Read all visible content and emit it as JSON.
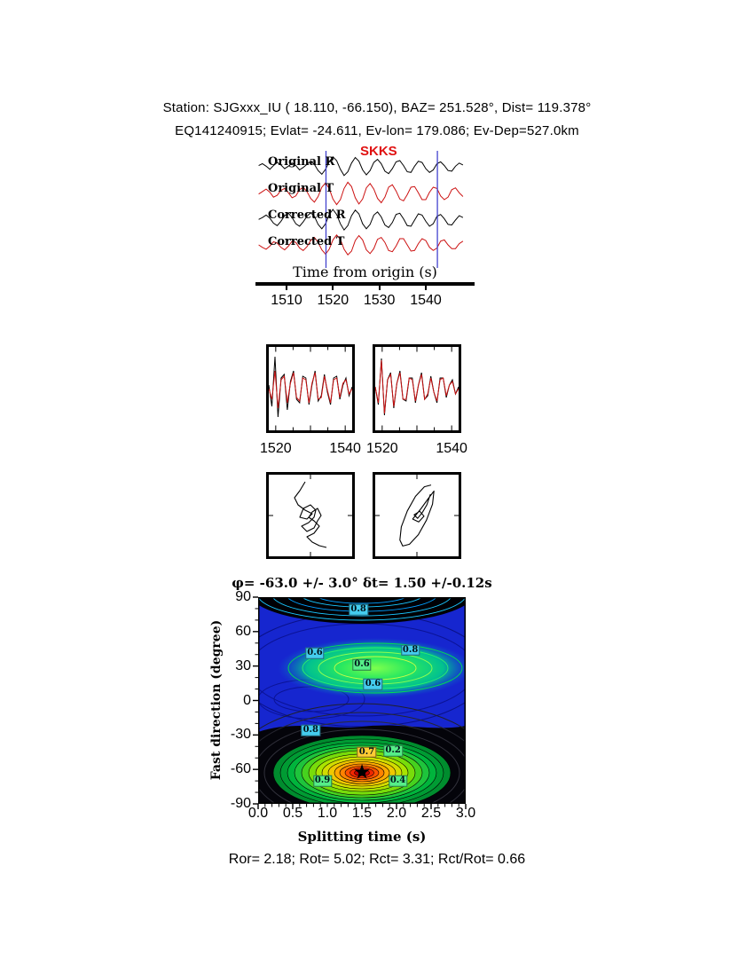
{
  "header": {
    "line1": "Station: SJGxxx_IU (  18.110,  -66.150), BAZ=  251.528°, Dist=  119.378°",
    "line2": "EQ141240915; Evlat= -24.611, Ev-lon= 179.086; Ev-Dep=527.0km"
  },
  "colors": {
    "trace_black": "#000000",
    "trace_red": "#cc1111",
    "window_blue": "#4343cf",
    "phase_red": "#e01010",
    "axis_black": "#000000"
  },
  "chart_data": [
    {
      "id": "trace-panel",
      "type": "line",
      "title_annotation": "SKKS",
      "xlabel": "Time from origin (s)",
      "x_ticks": [
        1510,
        1520,
        1530,
        1540
      ],
      "x_range": [
        1504,
        1548
      ],
      "window": [
        1518.5,
        1542.5
      ],
      "series": [
        {
          "name": "Original R",
          "color": "#000000",
          "values": [
            0.1,
            0.25,
            0.05,
            -0.2,
            0.1,
            0.35,
            0.15,
            -0.15,
            0.05,
            0.3,
            0.1,
            -0.25,
            -0.05,
            0.2,
            0.45,
            0.2,
            -0.3,
            -0.6,
            -0.2,
            0.4,
            0.8,
            0.5,
            -0.2,
            -0.7,
            -0.4,
            0.3,
            0.75,
            0.45,
            -0.25,
            -0.65,
            -0.3,
            0.35,
            0.6,
            0.25,
            -0.35,
            -0.55,
            -0.15,
            0.4,
            0.5,
            0.1,
            -0.4,
            -0.45,
            0.05,
            0.45,
            0.35,
            -0.15,
            -0.45,
            -0.25,
            0.25,
            0.4,
            0.1,
            -0.3,
            -0.35,
            0.05,
            0.3,
            0.15
          ]
        },
        {
          "name": "Original T",
          "color": "#cc1111",
          "values": [
            -0.05,
            0.15,
            0.35,
            0.1,
            -0.3,
            -0.15,
            0.25,
            0.4,
            0.05,
            -0.35,
            -0.2,
            0.3,
            0.5,
            0.15,
            -0.4,
            -0.7,
            -0.25,
            0.5,
            0.85,
            0.4,
            -0.45,
            -0.9,
            -0.5,
            0.4,
            0.9,
            0.55,
            -0.35,
            -0.85,
            -0.45,
            0.45,
            0.8,
            0.35,
            -0.4,
            -0.75,
            -0.3,
            0.5,
            0.7,
            0.2,
            -0.45,
            -0.6,
            -0.1,
            0.5,
            0.55,
            0.05,
            -0.5,
            -0.5,
            0.1,
            0.5,
            0.4,
            -0.2,
            -0.5,
            -0.3,
            0.3,
            0.45,
            0.05,
            -0.25
          ]
        },
        {
          "name": "Corrected R",
          "color": "#000000",
          "values": [
            0.05,
            0.2,
            0.4,
            0.15,
            -0.25,
            -0.45,
            -0.1,
            0.35,
            0.55,
            0.2,
            -0.3,
            -0.5,
            -0.15,
            0.3,
            0.6,
            0.3,
            -0.35,
            -0.7,
            -0.3,
            0.45,
            0.85,
            0.45,
            -0.3,
            -0.8,
            -0.45,
            0.35,
            0.8,
            0.5,
            -0.3,
            -0.7,
            -0.35,
            0.4,
            0.65,
            0.25,
            -0.4,
            -0.6,
            -0.2,
            0.45,
            0.55,
            0.1,
            -0.45,
            -0.5,
            0.0,
            0.5,
            0.4,
            -0.1,
            -0.5,
            -0.3,
            0.3,
            0.45,
            0.1,
            -0.35,
            -0.4,
            0.0,
            0.35,
            0.2
          ]
        },
        {
          "name": "Corrected T",
          "color": "#cc1111",
          "values": [
            0.0,
            -0.2,
            -0.35,
            -0.1,
            0.25,
            0.15,
            -0.2,
            -0.4,
            -0.1,
            0.3,
            0.2,
            -0.25,
            -0.45,
            -0.15,
            0.35,
            0.6,
            0.2,
            -0.4,
            -0.75,
            -0.35,
            0.4,
            0.8,
            0.45,
            -0.35,
            -0.8,
            -0.5,
            0.35,
            0.75,
            0.4,
            -0.4,
            -0.7,
            -0.3,
            0.45,
            0.6,
            0.2,
            -0.45,
            -0.55,
            -0.1,
            0.5,
            0.5,
            0.0,
            -0.5,
            -0.45,
            0.1,
            0.5,
            0.35,
            -0.2,
            -0.45,
            -0.25,
            0.3,
            0.4,
            0.0,
            -0.3,
            -0.3,
            0.1,
            0.3
          ]
        }
      ]
    },
    {
      "id": "window-original",
      "type": "line",
      "x_range": [
        1518,
        1542
      ],
      "x_ticks": [
        1520,
        1540
      ],
      "series": [
        {
          "name": "R",
          "color": "#000000",
          "values": [
            0.1,
            -0.5,
            0.9,
            -0.8,
            0.3,
            0.4,
            -0.6,
            0.2,
            0.5,
            -0.3,
            -0.4,
            0.35,
            0.3,
            -0.45,
            0.1,
            0.5,
            -0.35,
            -0.2,
            0.4,
            -0.1,
            -0.45,
            0.3,
            0.35,
            -0.3,
            0.1,
            0.3,
            -0.2,
            0.05
          ]
        },
        {
          "name": "T",
          "color": "#cc1111",
          "values": [
            0.0,
            -0.3,
            0.5,
            -0.55,
            0.25,
            0.35,
            -0.4,
            0.15,
            0.45,
            -0.25,
            -0.35,
            0.3,
            0.25,
            -0.4,
            0.15,
            0.45,
            -0.3,
            -0.25,
            0.35,
            -0.05,
            -0.4,
            0.25,
            0.3,
            -0.25,
            0.15,
            0.25,
            -0.15,
            0.0
          ]
        }
      ]
    },
    {
      "id": "window-corrected",
      "type": "line",
      "x_range": [
        1518,
        1542
      ],
      "x_ticks": [
        1520,
        1540
      ],
      "series": [
        {
          "name": "R",
          "color": "#000000",
          "values": [
            0.05,
            -0.45,
            0.85,
            -0.75,
            0.25,
            0.45,
            -0.55,
            0.15,
            0.5,
            -0.3,
            -0.35,
            0.3,
            0.3,
            -0.4,
            0.1,
            0.45,
            -0.3,
            -0.2,
            0.35,
            -0.1,
            -0.4,
            0.3,
            0.3,
            -0.25,
            0.1,
            0.25,
            -0.15,
            0.05
          ]
        },
        {
          "name": "T",
          "color": "#cc1111",
          "values": [
            0.05,
            -0.4,
            0.8,
            -0.7,
            0.25,
            0.4,
            -0.5,
            0.15,
            0.45,
            -0.3,
            -0.3,
            0.3,
            0.25,
            -0.35,
            0.1,
            0.4,
            -0.3,
            -0.15,
            0.3,
            -0.1,
            -0.35,
            0.25,
            0.3,
            -0.2,
            0.1,
            0.2,
            -0.15,
            0.0
          ]
        }
      ]
    },
    {
      "id": "particle-motion-original",
      "type": "scatter",
      "points": [
        [
          -0.15,
          0.95
        ],
        [
          -0.3,
          0.7
        ],
        [
          -0.45,
          0.5
        ],
        [
          -0.35,
          0.3
        ],
        [
          -0.15,
          0.15
        ],
        [
          0.05,
          0.05
        ],
        [
          -0.1,
          -0.1
        ],
        [
          -0.3,
          -0.05
        ],
        [
          -0.2,
          0.2
        ],
        [
          0.0,
          0.3
        ],
        [
          0.15,
          0.15
        ],
        [
          0.1,
          -0.05
        ],
        [
          -0.05,
          -0.2
        ],
        [
          -0.25,
          -0.3
        ],
        [
          -0.1,
          -0.45
        ],
        [
          0.1,
          -0.35
        ],
        [
          0.2,
          -0.15
        ],
        [
          0.3,
          0.0
        ],
        [
          0.2,
          0.2
        ],
        [
          0.05,
          0.1
        ],
        [
          -0.05,
          -0.05
        ],
        [
          0.1,
          -0.15
        ],
        [
          0.25,
          -0.3
        ],
        [
          0.1,
          -0.5
        ],
        [
          -0.1,
          -0.6
        ],
        [
          0.05,
          -0.75
        ],
        [
          0.25,
          -0.85
        ],
        [
          0.45,
          -0.9
        ]
      ]
    },
    {
      "id": "particle-motion-corrected",
      "type": "scatter",
      "points": [
        [
          0.4,
          0.86
        ],
        [
          0.21,
          0.81
        ],
        [
          -0.04,
          0.54
        ],
        [
          -0.27,
          0.13
        ],
        [
          -0.44,
          -0.32
        ],
        [
          -0.48,
          -0.69
        ],
        [
          -0.4,
          -0.86
        ],
        [
          -0.21,
          -0.81
        ],
        [
          0.04,
          -0.54
        ],
        [
          0.27,
          -0.13
        ],
        [
          0.44,
          0.32
        ],
        [
          0.48,
          0.69
        ],
        [
          0.3,
          0.45
        ],
        [
          0.12,
          0.2
        ],
        [
          0.0,
          0.05
        ],
        [
          -0.12,
          -0.1
        ],
        [
          0.05,
          -0.18
        ],
        [
          0.2,
          -0.02
        ],
        [
          0.08,
          0.12
        ],
        [
          -0.08,
          0.02
        ],
        [
          0.02,
          -0.08
        ],
        [
          0.15,
          0.08
        ],
        [
          0.28,
          0.3
        ],
        [
          0.38,
          0.6
        ]
      ]
    },
    {
      "id": "misfit-surface",
      "type": "heatmap",
      "title": "φ= -63.0 +/- 3.0° δt= 1.50 +/-0.12s",
      "xlabel": "Splitting time (s)",
      "ylabel": "Fast direction (degree)",
      "x_ticks": [
        "0.0",
        "0.5",
        "1.0",
        "1.5",
        "2.0",
        "2.5",
        "3.0"
      ],
      "y_ticks": [
        90,
        60,
        30,
        0,
        -30,
        -60,
        -90
      ],
      "xlim": [
        0,
        3
      ],
      "ylim": [
        -90,
        90
      ],
      "best_fit": {
        "phi": -63.0,
        "phi_err": 3.0,
        "dt": 1.5,
        "dt_err": 0.12,
        "marker": "star"
      },
      "contour_labels": [
        {
          "text": "0.8",
          "dt": 1.45,
          "phi": 79,
          "bg": "#44ccee"
        },
        {
          "text": "0.6",
          "dt": 0.82,
          "phi": 41,
          "bg": "#44ccee"
        },
        {
          "text": "0.8",
          "dt": 2.2,
          "phi": 44,
          "bg": "#44ccee"
        },
        {
          "text": "0.6",
          "dt": 1.5,
          "phi": 31,
          "bg": "#55ee88"
        },
        {
          "text": "0.6",
          "dt": 1.66,
          "phi": 14,
          "bg": "#44ccee"
        },
        {
          "text": "0.8",
          "dt": 0.76,
          "phi": -26,
          "bg": "#44ccee"
        },
        {
          "text": "0.7",
          "dt": 1.57,
          "phi": -45,
          "bg": "#ffcc33"
        },
        {
          "text": "0.2",
          "dt": 1.95,
          "phi": -44,
          "bg": "#55ee88"
        },
        {
          "text": "0.9",
          "dt": 0.93,
          "phi": -70,
          "bg": "#55ee88"
        },
        {
          "text": "0.4",
          "dt": 2.02,
          "phi": -70,
          "bg": "#55ee88"
        }
      ]
    }
  ],
  "footer": {
    "text": "Ror= 2.18; Rot= 5.02; Rct= 3.31; Rct/Rot= 0.66"
  }
}
